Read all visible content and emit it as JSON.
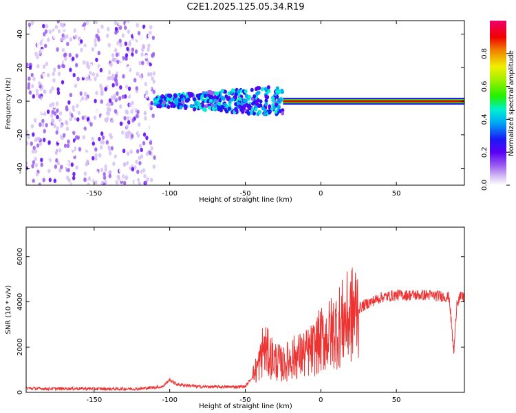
{
  "title": "C2E1.2025.125.05.34.R19",
  "chart_data": [
    {
      "type": "heatmap",
      "xlabel": "Height of straight line (km)",
      "ylabel": "Frequency (Hz)",
      "xlim": [
        -195,
        95
      ],
      "ylim": [
        -50,
        48
      ],
      "xticks": [
        -150,
        -100,
        -50,
        0,
        50
      ],
      "yticks": [
        -40,
        -20,
        0,
        20,
        40
      ],
      "colorbar": {
        "label": "Normalized spectral amplitude",
        "ticks": [
          0.0,
          0.2,
          0.4,
          0.6,
          0.8
        ],
        "range": [
          0,
          1
        ],
        "colormap": "rainbow: white-lavender-violet-blue-cyan-green-yellow-orange-red-magenta"
      },
      "features": [
        {
          "x_range": [
            -195,
            -110
          ],
          "description": "broad scatter of weak purple amplitude across all frequencies"
        },
        {
          "x_range": [
            -110,
            -25
          ],
          "frequency_center": 0,
          "amplitude": 0.35
        },
        {
          "x_range": [
            -25,
            95
          ],
          "frequency_center": 0,
          "amplitude": 0.95
        }
      ]
    },
    {
      "type": "line",
      "xlabel": "Height of straight line (km)",
      "ylabel": "SNR (10 * v/v)",
      "xlim": [
        -195,
        95
      ],
      "ylim": [
        0,
        7300
      ],
      "xticks": [
        -150,
        -100,
        -50,
        0,
        50
      ],
      "yticks": [
        0,
        2000,
        4000,
        6000
      ],
      "color": "#ee3333",
      "series": [
        {
          "x": [
            -195,
            -180,
            -160,
            -140,
            -120,
            -105,
            -100,
            -95,
            -80,
            -60,
            -50,
            -45,
            -40,
            -38,
            -35,
            -30,
            -25,
            -20,
            -15,
            -10,
            -5,
            0,
            5,
            10,
            15,
            20,
            25,
            30,
            40,
            50,
            60,
            70,
            80,
            85,
            88,
            90,
            92,
            95
          ],
          "y": [
            180,
            160,
            170,
            150,
            160,
            250,
            550,
            350,
            250,
            240,
            260,
            700,
            1400,
            2000,
            1700,
            1400,
            1200,
            1500,
            1600,
            1700,
            1900,
            2300,
            2500,
            2800,
            3100,
            3400,
            3700,
            3900,
            4200,
            4300,
            4300,
            4300,
            4250,
            4200,
            1700,
            4000,
            4200,
            4200
          ]
        }
      ]
    }
  ],
  "colors": {
    "snr_line": "#ee3333",
    "background": "#ffffff"
  }
}
